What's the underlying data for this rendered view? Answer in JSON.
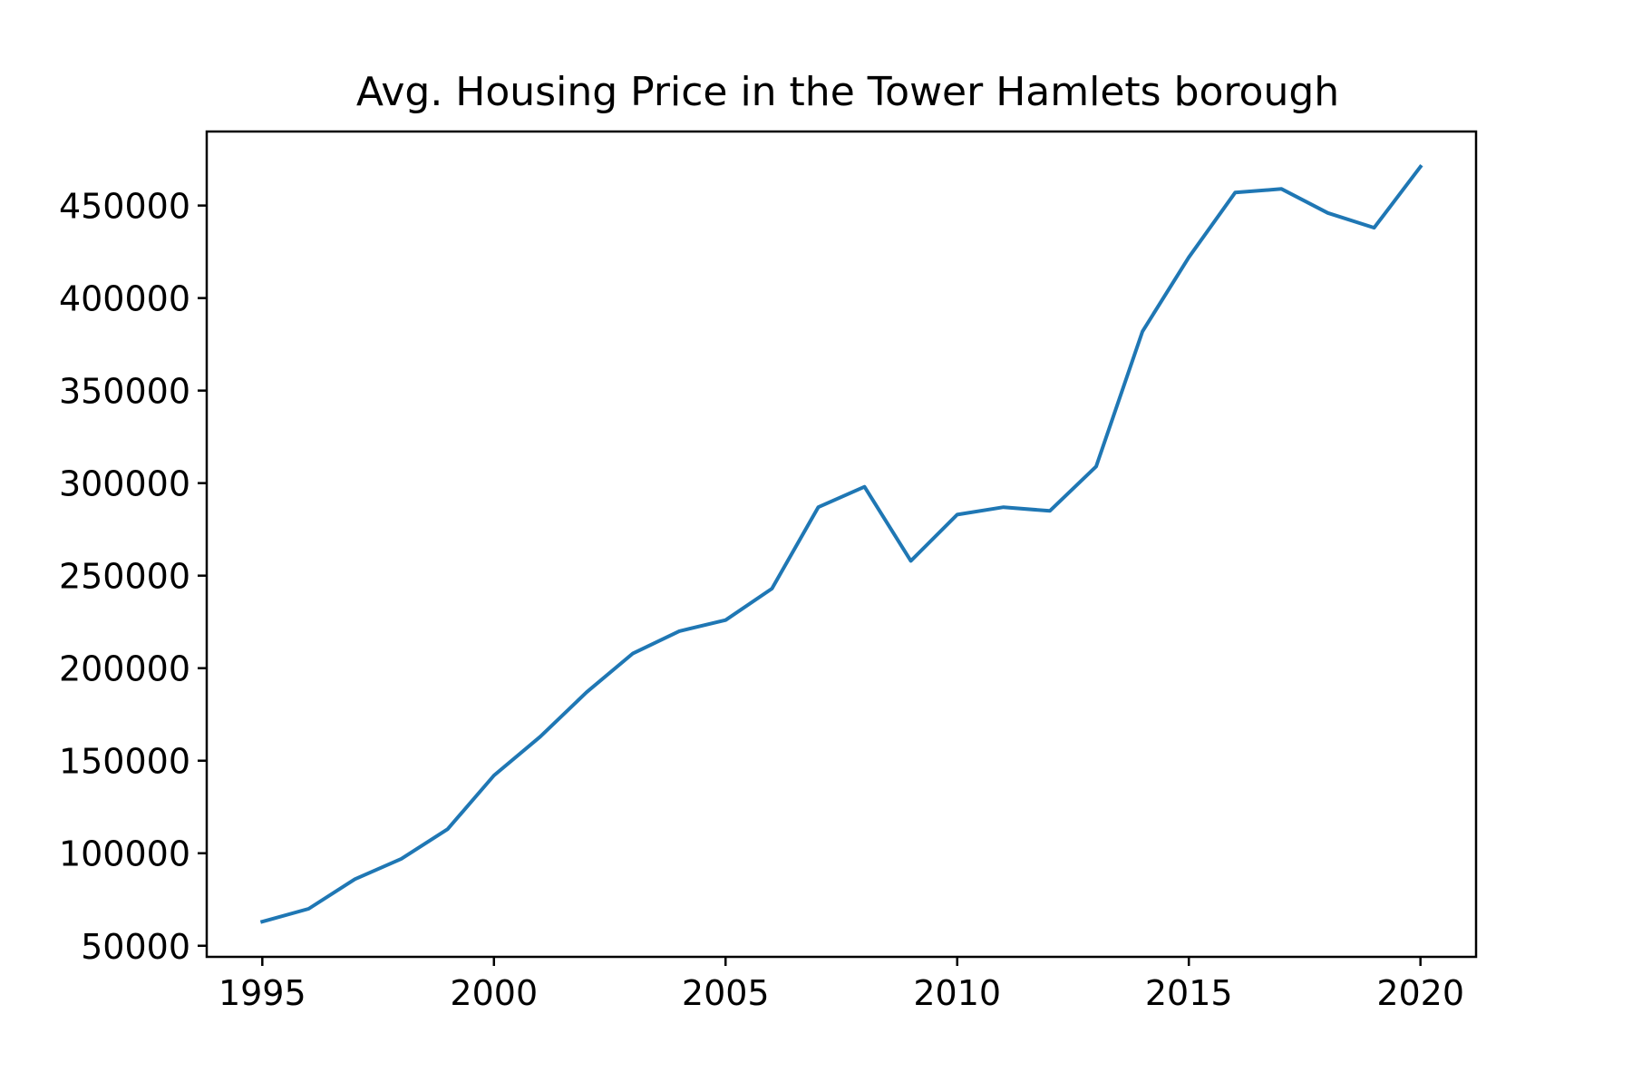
{
  "chart_data": {
    "type": "line",
    "title": "Avg. Housing Price in the Tower Hamlets borough",
    "xlabel": "",
    "ylabel": "",
    "xlim": [
      1993.8,
      2021.2
    ],
    "ylim": [
      44000,
      490000
    ],
    "x_ticks": [
      1995,
      2000,
      2005,
      2010,
      2015,
      2020
    ],
    "y_ticks": [
      50000,
      100000,
      150000,
      200000,
      250000,
      300000,
      350000,
      400000,
      450000
    ],
    "grid": false,
    "legend": "none",
    "series": [
      {
        "color": "#1f77b4",
        "x": [
          1995,
          1996,
          1997,
          1998,
          1999,
          2000,
          2001,
          2002,
          2003,
          2004,
          2005,
          2006,
          2007,
          2008,
          2009,
          2010,
          2011,
          2012,
          2013,
          2014,
          2015,
          2016,
          2017,
          2018,
          2019,
          2020
        ],
        "y": [
          63000,
          70000,
          86000,
          97000,
          113000,
          142000,
          163000,
          187000,
          208000,
          220000,
          226000,
          243000,
          287000,
          298000,
          258000,
          283000,
          287000,
          285000,
          309000,
          382000,
          422000,
          457000,
          459000,
          446000,
          438000,
          471000
        ]
      }
    ]
  }
}
